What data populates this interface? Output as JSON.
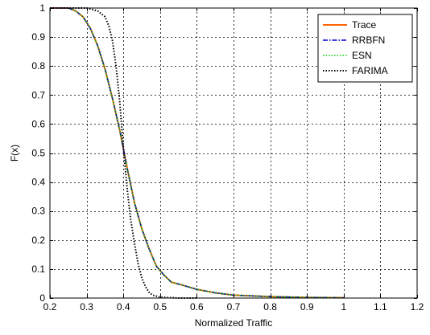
{
  "chart_data": {
    "type": "line",
    "title": "",
    "xlabel": "Normalized Traffic",
    "ylabel": "F(x)",
    "xlim": [
      0.2,
      1.2
    ],
    "ylim": [
      0,
      1
    ],
    "xticks": [
      0.2,
      0.3,
      0.4,
      0.5,
      0.6,
      0.7,
      0.8,
      0.9,
      1,
      1.1,
      1.2
    ],
    "yticks": [
      0,
      0.1,
      0.2,
      0.3,
      0.4,
      0.5,
      0.6,
      0.7,
      0.8,
      0.9,
      1
    ],
    "xtick_labels": [
      "0.2",
      "0.3",
      "0.4",
      "0.5",
      "0.6",
      "0.7",
      "0.8",
      "0.9",
      "1",
      "1.1",
      "1.2"
    ],
    "ytick_labels": [
      "0",
      "0.1",
      "0.2",
      "0.3",
      "0.4",
      "0.5",
      "0.6",
      "0.7",
      "0.8",
      "0.9",
      "1"
    ],
    "grid": true,
    "legend_position": "top-right",
    "series": [
      {
        "name": "Trace",
        "color": "#ff6600",
        "line_style": "solid",
        "x": [
          0.2,
          0.25,
          0.27,
          0.29,
          0.31,
          0.33,
          0.35,
          0.37,
          0.39,
          0.41,
          0.43,
          0.45,
          0.47,
          0.49,
          0.51,
          0.53,
          0.56,
          0.6,
          0.65,
          0.7,
          0.8,
          0.9,
          1.0
        ],
        "y": [
          1.0,
          1.0,
          0.99,
          0.97,
          0.93,
          0.87,
          0.79,
          0.69,
          0.58,
          0.45,
          0.33,
          0.24,
          0.17,
          0.11,
          0.08,
          0.055,
          0.045,
          0.03,
          0.018,
          0.01,
          0.005,
          0.002,
          0.001
        ]
      },
      {
        "name": "RRBFN",
        "color": "#0000cc",
        "line_style": "dashdot",
        "x": [
          0.2,
          0.25,
          0.27,
          0.29,
          0.31,
          0.33,
          0.35,
          0.37,
          0.39,
          0.41,
          0.43,
          0.45,
          0.47,
          0.49,
          0.51,
          0.53,
          0.56,
          0.6,
          0.65,
          0.7,
          0.8,
          0.9,
          1.0
        ],
        "y": [
          1.0,
          1.0,
          0.99,
          0.97,
          0.93,
          0.87,
          0.79,
          0.69,
          0.58,
          0.45,
          0.33,
          0.24,
          0.17,
          0.11,
          0.08,
          0.055,
          0.045,
          0.03,
          0.018,
          0.01,
          0.005,
          0.002,
          0.001
        ]
      },
      {
        "name": "ESN",
        "color": "#00cc00",
        "line_style": "dotted",
        "x": [
          0.2,
          0.25,
          0.27,
          0.29,
          0.31,
          0.33,
          0.35,
          0.37,
          0.39,
          0.41,
          0.43,
          0.45,
          0.47,
          0.49,
          0.51,
          0.53,
          0.56,
          0.6,
          0.65,
          0.7,
          0.8,
          0.9,
          1.0
        ],
        "y": [
          1.0,
          1.0,
          0.99,
          0.97,
          0.93,
          0.87,
          0.79,
          0.69,
          0.58,
          0.45,
          0.33,
          0.24,
          0.17,
          0.11,
          0.08,
          0.055,
          0.045,
          0.03,
          0.018,
          0.01,
          0.005,
          0.002,
          0.001
        ]
      },
      {
        "name": "FARIMA",
        "color": "#000000",
        "line_style": "dotted",
        "x": [
          0.2,
          0.3,
          0.33,
          0.35,
          0.36,
          0.37,
          0.38,
          0.39,
          0.4,
          0.41,
          0.42,
          0.43,
          0.44,
          0.45,
          0.46,
          0.47,
          0.48,
          0.5,
          0.55,
          0.6
        ],
        "y": [
          1.0,
          1.0,
          0.99,
          0.97,
          0.94,
          0.89,
          0.8,
          0.68,
          0.52,
          0.38,
          0.27,
          0.19,
          0.12,
          0.07,
          0.04,
          0.02,
          0.01,
          0.003,
          0.0,
          0.0
        ]
      }
    ]
  }
}
